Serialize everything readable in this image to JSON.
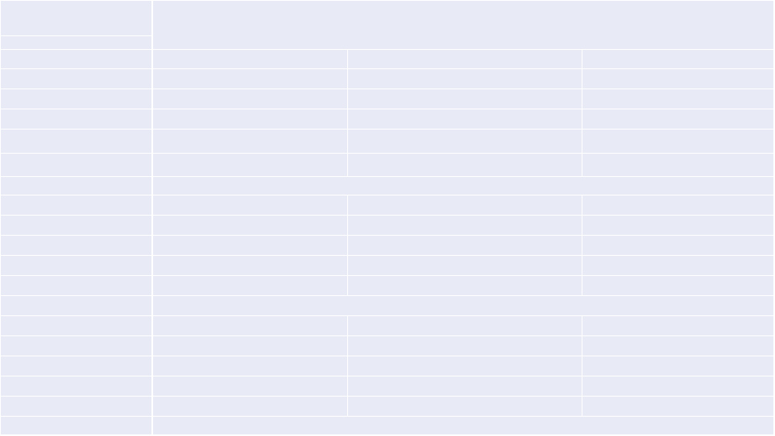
{
  "grid": {
    "background_color": "#e8ebf5",
    "line_color": "#ffffff",
    "header": {
      "corner_top_text": "",
      "corner_bottom_text": "",
      "title_text": ""
    },
    "sections": [
      {
        "label": "",
        "rows": [
          [
            "",
            "",
            "",
            ""
          ],
          [
            "",
            "",
            "",
            ""
          ],
          [
            "",
            "",
            "",
            ""
          ],
          [
            "",
            "",
            "",
            ""
          ],
          [
            "",
            "",
            "",
            ""
          ],
          [
            "",
            "",
            "",
            ""
          ]
        ]
      },
      {
        "label": "",
        "rows": [
          [
            "",
            "",
            "",
            ""
          ],
          [
            "",
            "",
            "",
            ""
          ],
          [
            "",
            "",
            "",
            ""
          ],
          [
            "",
            "",
            "",
            ""
          ],
          [
            "",
            "",
            "",
            ""
          ]
        ]
      },
      {
        "label": "",
        "rows": [
          [
            "",
            "",
            "",
            ""
          ],
          [
            "",
            "",
            "",
            ""
          ],
          [
            "",
            "",
            "",
            ""
          ],
          [
            "",
            "",
            "",
            ""
          ],
          [
            "",
            "",
            "",
            ""
          ]
        ]
      },
      {
        "label": "",
        "rows": []
      }
    ]
  }
}
